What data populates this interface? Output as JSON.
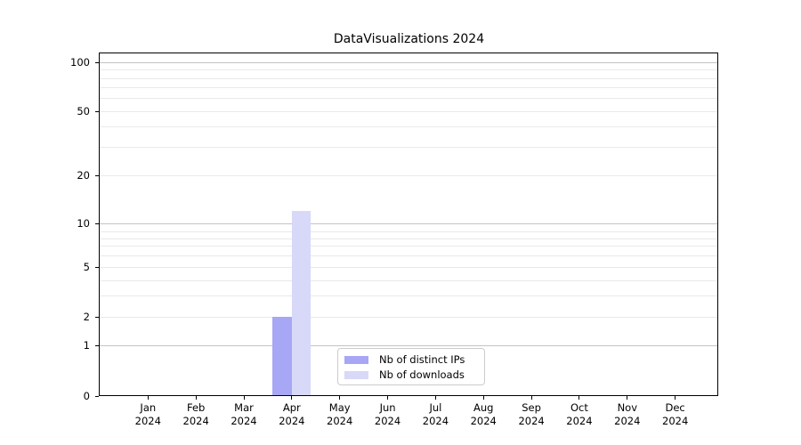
{
  "chart_data": {
    "type": "bar",
    "title": "DataVisualizations 2024",
    "year": "2024",
    "categories": [
      "Jan",
      "Feb",
      "Mar",
      "Apr",
      "May",
      "Jun",
      "Jul",
      "Aug",
      "Sep",
      "Oct",
      "Nov",
      "Dec"
    ],
    "series": [
      {
        "name": "Nb of distinct IPs",
        "color": "#a7a7f5",
        "values": [
          0,
          0,
          0,
          2,
          0,
          0,
          0,
          0,
          0,
          0,
          0,
          0
        ]
      },
      {
        "name": "Nb of downloads",
        "color": "#d8d8f8",
        "values": [
          0,
          0,
          0,
          12,
          0,
          0,
          0,
          0,
          0,
          0,
          0,
          0
        ]
      }
    ],
    "y_ticks": [
      0,
      1,
      2,
      5,
      10,
      20,
      50,
      100
    ],
    "yscale": "symlog",
    "ylim": [
      0,
      116
    ],
    "xlabel": "",
    "ylabel": "",
    "grid": "both",
    "legend_position": "lower center"
  }
}
